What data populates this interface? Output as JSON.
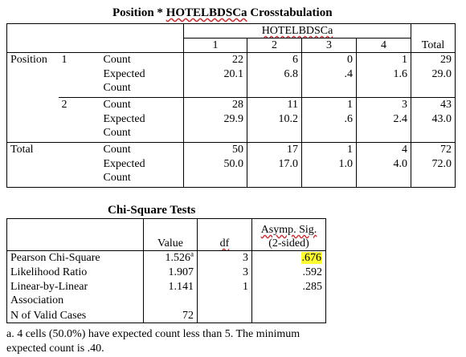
{
  "crosstab": {
    "title_prefix": "Position * ",
    "title_var": "HOTELBDSCa",
    "title_suffix": " Crosstabulation",
    "col_var": "HOTELBDSCa",
    "cols": [
      "1",
      "2",
      "3",
      "4"
    ],
    "total_label": "Total",
    "row_var": "Position",
    "count_label": "Count",
    "expected_label_1": "Expected",
    "expected_label_2": "Count",
    "rows": [
      {
        "label": "1",
        "count": [
          "22",
          "6",
          "0",
          "1",
          "29"
        ],
        "expected": [
          "20.1",
          "6.8",
          ".4",
          "1.6",
          "29.0"
        ]
      },
      {
        "label": "2",
        "count": [
          "28",
          "11",
          "1",
          "3",
          "43"
        ],
        "expected": [
          "29.9",
          "10.2",
          ".6",
          "2.4",
          "43.0"
        ]
      },
      {
        "label": "Total",
        "count": [
          "50",
          "17",
          "1",
          "4",
          "72"
        ],
        "expected": [
          "50.0",
          "17.0",
          "1.0",
          "4.0",
          "72.0"
        ]
      }
    ]
  },
  "chisq": {
    "title": "Chi-Square Tests",
    "headers": {
      "value": "Value",
      "df": "df",
      "sig_1": "Asymp. Sig.",
      "sig_2": "(2-sided)"
    },
    "rows": [
      {
        "label": "Pearson Chi-Square",
        "value": "1.526",
        "sup": "a",
        "df": "3",
        "sig": ".676"
      },
      {
        "label": "Likelihood Ratio",
        "value": "1.907",
        "df": "3",
        "sig": ".592"
      },
      {
        "label_1": "Linear-by-Linear",
        "label_2": "Association",
        "value": "1.141",
        "df": "1",
        "sig": ".285"
      },
      {
        "label": "N of Valid Cases",
        "value": "72"
      }
    ],
    "footnote": "a. 4 cells (50.0%) have expected count less than 5. The minimum  expected count is .40.",
    "highlight_color": "#ffff33"
  }
}
